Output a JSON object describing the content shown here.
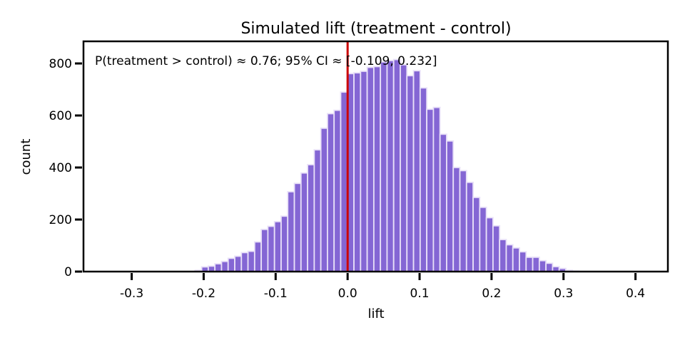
{
  "chart_data": {
    "type": "bar",
    "title": "Simulated lift (treatment - control)",
    "xlabel": "lift",
    "ylabel": "count",
    "annotation": "P(treatment > control) ≈ 0.76; 95% CI ≈ [-0.109, 0.232]",
    "xlim": [
      -0.367,
      0.445
    ],
    "ylim": [
      0,
      885
    ],
    "xticks": [
      -0.3,
      -0.2,
      -0.1,
      0.0,
      0.1,
      0.2,
      0.3,
      0.4
    ],
    "xtick_labels": [
      "-0.3",
      "-0.2",
      "-0.1",
      "0.0",
      "0.1",
      "0.2",
      "0.3",
      "0.4"
    ],
    "yticks": [
      0,
      200,
      400,
      600,
      800
    ],
    "ytick_labels": [
      "0",
      "200",
      "400",
      "600",
      "800"
    ],
    "bin_start": -0.212,
    "bin_width": 0.0092,
    "values": [
      5,
      18,
      21,
      30,
      39,
      51,
      59,
      73,
      78,
      114,
      162,
      174,
      192,
      213,
      307,
      339,
      379,
      411,
      468,
      551,
      607,
      620,
      690,
      761,
      764,
      770,
      785,
      788,
      806,
      811,
      815,
      795,
      753,
      772,
      706,
      624,
      631,
      528,
      502,
      400,
      388,
      343,
      285,
      247,
      207,
      176,
      123,
      103,
      91,
      76,
      55,
      55,
      42,
      32,
      19,
      12,
      5,
      2
    ],
    "reference_line": 0.0,
    "grid": false,
    "colors": {
      "bars": "#8466d4",
      "bar_edge": "#e8e0f8",
      "reference_line": "#cc0000"
    }
  }
}
